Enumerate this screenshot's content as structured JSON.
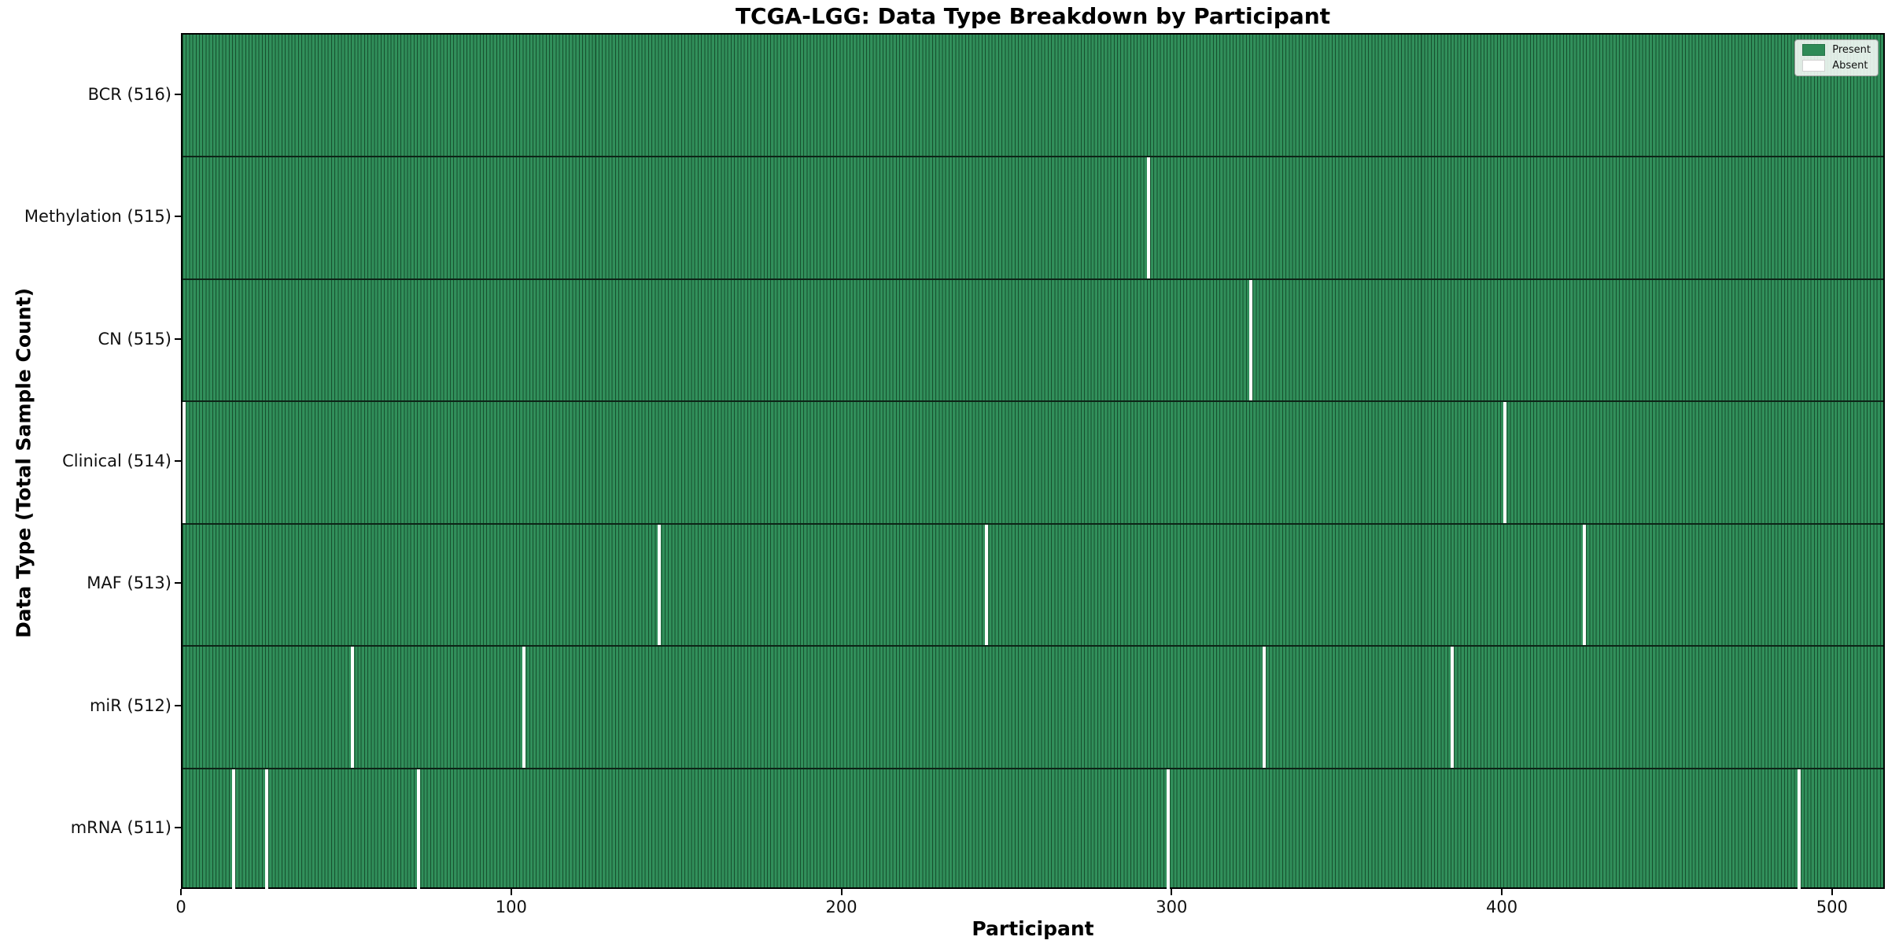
{
  "title": "TCGA-LGG: Data Type Breakdown by Participant",
  "axes": {
    "xlabel": "Participant",
    "ylabel": "Data Type (Total Sample Count)"
  },
  "legend": {
    "entries": [
      {
        "label": "Present",
        "color": "#2e8b57"
      },
      {
        "label": "Absent",
        "color": "#ffffff"
      }
    ]
  },
  "colors": {
    "present": "#2e8b57",
    "absent": "#ffffff",
    "cell_edge": "#17512f",
    "row_separator": "#0d2417",
    "background": "#ffffff"
  },
  "chart_data": {
    "type": "heatmap",
    "title": "TCGA-LGG: Data Type Breakdown by Participant",
    "xlabel": "Participant",
    "ylabel": "Data Type (Total Sample Count)",
    "n_participants": 516,
    "x_ticks": [
      0,
      100,
      200,
      300,
      400,
      500
    ],
    "x_tick_labels": [
      "0",
      "100",
      "200",
      "300",
      "400",
      "500"
    ],
    "xlim": [
      0,
      516
    ],
    "grid": false,
    "legend_position": "upper right",
    "legend_entries": [
      "Present",
      "Absent"
    ],
    "value_encoding": {
      "present": 1,
      "absent": 0
    },
    "rows": [
      {
        "label": "BCR (516)",
        "data_type": "BCR",
        "total_samples": 516,
        "absent_participants": []
      },
      {
        "label": "Methylation (515)",
        "data_type": "Methylation",
        "total_samples": 515,
        "absent_participants": [
          292
        ]
      },
      {
        "label": "CN (515)",
        "data_type": "CN",
        "total_samples": 515,
        "absent_participants": [
          323
        ]
      },
      {
        "label": "Clinical (514)",
        "data_type": "Clinical",
        "total_samples": 514,
        "absent_participants": [
          0,
          400
        ]
      },
      {
        "label": "MAF (513)",
        "data_type": "MAF",
        "total_samples": 513,
        "absent_participants": [
          144,
          243,
          424
        ]
      },
      {
        "label": "miR (512)",
        "data_type": "miR",
        "total_samples": 512,
        "absent_participants": [
          51,
          103,
          327,
          384
        ]
      },
      {
        "label": "mRNA (511)",
        "data_type": "mRNA",
        "total_samples": 511,
        "absent_participants": [
          15,
          25,
          71,
          298,
          489
        ]
      }
    ]
  }
}
